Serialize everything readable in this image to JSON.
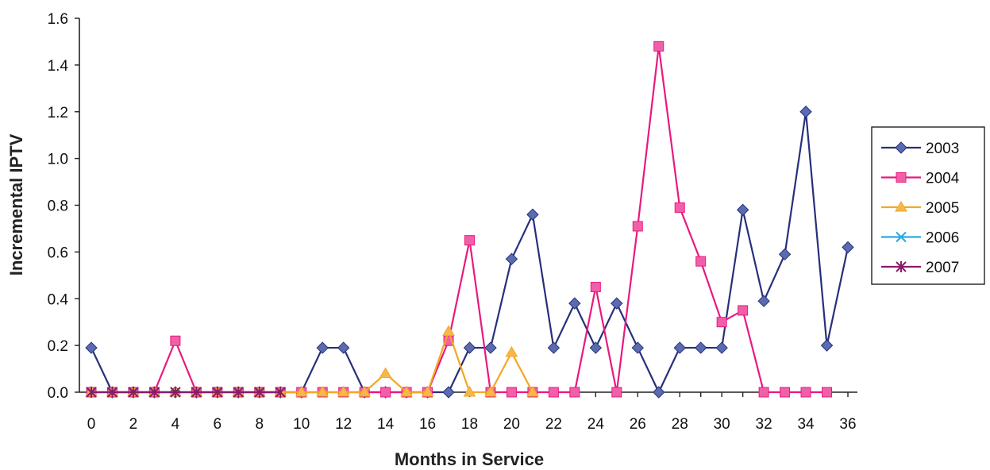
{
  "chart_data": {
    "type": "line",
    "xlabel": "Months in Service",
    "ylabel": "Incremental IPTV",
    "xlim": [
      0,
      36
    ],
    "ylim": [
      0,
      1.6
    ],
    "x_ticks": [
      0,
      2,
      4,
      6,
      8,
      10,
      12,
      14,
      16,
      18,
      20,
      22,
      24,
      26,
      28,
      30,
      32,
      34,
      36
    ],
    "y_ticks": [
      0,
      0.2,
      0.4,
      0.6,
      0.8,
      1.0,
      1.2,
      1.4,
      1.6
    ],
    "y_tick_labels": [
      "0.0",
      "0.2",
      "0.4",
      "0.6",
      "0.8",
      "1.0",
      "1.2",
      "1.4",
      "1.6"
    ],
    "grid": false,
    "legend_position": "right",
    "series": [
      {
        "name": "2003",
        "color": "#26307a",
        "marker": "diamond",
        "marker_color": "#5a6bb0",
        "x": [
          0,
          1,
          2,
          3,
          4,
          5,
          6,
          7,
          8,
          9,
          10,
          11,
          12,
          13,
          14,
          15,
          16,
          17,
          18,
          19,
          20,
          21,
          22,
          23,
          24,
          25,
          26,
          27,
          28,
          29,
          30,
          31,
          32,
          33,
          34,
          35,
          36
        ],
        "y": [
          0.19,
          0,
          0,
          0,
          0,
          0,
          0,
          0,
          0,
          0,
          0,
          0.19,
          0.19,
          0,
          0,
          0,
          0,
          0,
          0.19,
          0.19,
          0.57,
          0.76,
          0.19,
          0.38,
          0.19,
          0.38,
          0.19,
          0,
          0.19,
          0.19,
          0.19,
          0.78,
          0.39,
          0.59,
          1.2,
          0.2,
          0.62
        ]
      },
      {
        "name": "2004",
        "color": "#e8197f",
        "marker": "square",
        "marker_color": "#f060a8",
        "x": [
          0,
          1,
          2,
          3,
          4,
          5,
          6,
          7,
          8,
          9,
          10,
          11,
          12,
          13,
          14,
          15,
          16,
          17,
          18,
          19,
          20,
          21,
          22,
          23,
          24,
          25,
          26,
          27,
          28,
          29,
          30,
          31,
          32,
          33,
          34,
          35
        ],
        "y": [
          0,
          0,
          0,
          0,
          0.22,
          0,
          0,
          0,
          0,
          0,
          0,
          0,
          0,
          0,
          0,
          0,
          0,
          0.22,
          0.65,
          0,
          0,
          0,
          0,
          0,
          0.45,
          0,
          0.71,
          1.48,
          0.79,
          0.56,
          0.3,
          0.35,
          0,
          0,
          0,
          0
        ]
      },
      {
        "name": "2005",
        "color": "#f5a623",
        "marker": "triangle",
        "marker_color": "#f7b84a",
        "x": [
          0,
          1,
          2,
          3,
          4,
          5,
          6,
          7,
          8,
          9,
          10,
          11,
          12,
          13,
          14,
          15,
          16,
          17,
          18,
          19,
          20,
          21
        ],
        "y": [
          0,
          0,
          0,
          0,
          0,
          0,
          0,
          0,
          0,
          0,
          0,
          0,
          0,
          0,
          0.08,
          0,
          0,
          0.26,
          0,
          0,
          0.17,
          0
        ]
      },
      {
        "name": "2006",
        "color": "#2aa9e0",
        "marker": "x",
        "marker_color": "#2aa9e0",
        "x": [
          0,
          1,
          2,
          3,
          4,
          5,
          6,
          7,
          8,
          9
        ],
        "y": [
          0,
          0,
          0,
          0,
          0,
          0,
          0,
          0,
          0,
          0
        ]
      },
      {
        "name": "2007",
        "color": "#8b1a6b",
        "marker": "star",
        "marker_color": "#8b1a6b",
        "x": [
          0,
          1,
          2,
          3,
          4,
          5,
          6,
          7,
          8,
          9
        ],
        "y": [
          0,
          0,
          0,
          0,
          0,
          0,
          0,
          0,
          0,
          0
        ]
      }
    ]
  }
}
